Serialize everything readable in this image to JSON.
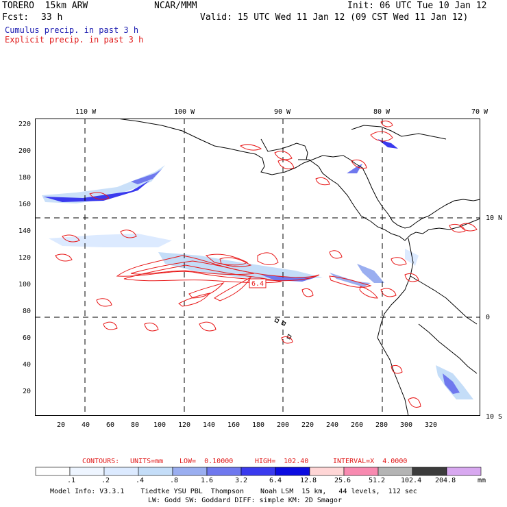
{
  "header": {
    "model": "TORERO  15km ARW",
    "org": "NCAR/MMM",
    "init": "Init: 06 UTC Tue 10 Jan 12",
    "fcst_label": "Fcst:",
    "fcst_value": "33 h",
    "valid": "Valid: 15 UTC Wed 11 Jan 12 (09 CST Wed 11 Jan 12)",
    "field1": "Cumulus precip. in past 3 h",
    "field2": "Explicit precip. in past 3 h"
  },
  "axes": {
    "top_lon_labels": [
      "110 W",
      "100 W",
      "90 W",
      "80 W",
      "70 W"
    ],
    "right_lat_labels": [
      "10 N",
      "0",
      "10 S"
    ],
    "left_ticks": [
      "220",
      "200",
      "180",
      "160",
      "140",
      "120",
      "100",
      "80",
      "60",
      "40",
      "20"
    ],
    "bottom_ticks": [
      "20",
      "40",
      "60",
      "80",
      "100",
      "120",
      "140",
      "160",
      "180",
      "200",
      "220",
      "240",
      "260",
      "280",
      "300",
      "320"
    ]
  },
  "map": {
    "peak_label": "6.4"
  },
  "contours_line": {
    "contours": "CONTOURS:",
    "units": "UNITS=mm",
    "low": "LOW=  0.10000",
    "high": "HIGH=  102.40",
    "interval": "INTERVAL=X  4.0000"
  },
  "colorbar": {
    "labels": [
      ".1",
      ".2",
      ".4",
      ".8",
      "1.6",
      "3.2",
      "6.4",
      "12.8",
      "25.6",
      "51.2",
      "102.4",
      "204.8"
    ],
    "unit": "mm",
    "colors": [
      "#ffffff",
      "#eef5ff",
      "#dceaff",
      "#c4ddf8",
      "#9aaef0",
      "#6f78ee",
      "#3a3aee",
      "#0c0ce0",
      "#ffd6d6",
      "#f88ab0",
      "#b4b4b4",
      "#3c3c3c",
      "#d8a8f0"
    ]
  },
  "footer": {
    "line1": "Model Info: V3.3.1    Tiedtke YSU PBL  Thompson    Noah LSM  15 km,   44 levels,  112 sec",
    "line2": "LW: Godd SW: Goddard DIFF: simple KM: 2D Smagor"
  }
}
